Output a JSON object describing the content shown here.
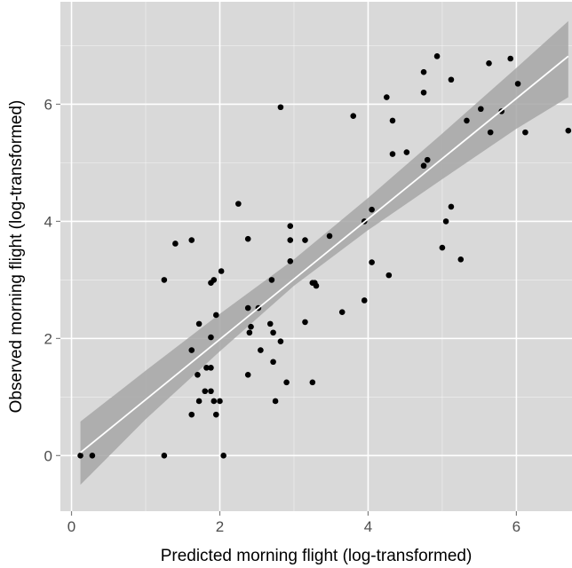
{
  "chart_data": {
    "type": "scatter",
    "title": "",
    "xlabel": "Predicted morning flight (log-transformed)",
    "ylabel": "Observed morning flight (log-transformed)",
    "xlim": [
      -0.15,
      6.75
    ],
    "ylim": [
      -0.95,
      7.75
    ],
    "xticks": [
      0,
      2,
      4,
      6
    ],
    "yticks": [
      0,
      2,
      4,
      6
    ],
    "xtick_labels": [
      "0",
      "2",
      "4",
      "6"
    ],
    "ytick_labels": [
      "0",
      "2",
      "4",
      "6"
    ],
    "grid": true,
    "legend": "none",
    "colors": {
      "panel": "#d9d9d9",
      "grid": "#ffffff",
      "points": "#000000",
      "fit_line": "#ffffff",
      "confidence_band": "#a6a6a6"
    },
    "points": [
      {
        "x": 0.12,
        "y": 0.0
      },
      {
        "x": 0.28,
        "y": 0.0
      },
      {
        "x": 1.25,
        "y": 0.0
      },
      {
        "x": 2.05,
        "y": 0.0
      },
      {
        "x": 1.25,
        "y": 3.0
      },
      {
        "x": 1.4,
        "y": 3.62
      },
      {
        "x": 1.62,
        "y": 3.68
      },
      {
        "x": 1.62,
        "y": 0.7
      },
      {
        "x": 1.62,
        "y": 1.8
      },
      {
        "x": 1.7,
        "y": 1.38
      },
      {
        "x": 1.72,
        "y": 2.25
      },
      {
        "x": 1.72,
        "y": 0.93
      },
      {
        "x": 1.8,
        "y": 1.1
      },
      {
        "x": 1.82,
        "y": 1.5
      },
      {
        "x": 1.88,
        "y": 1.1
      },
      {
        "x": 1.88,
        "y": 2.02
      },
      {
        "x": 1.88,
        "y": 1.5
      },
      {
        "x": 1.88,
        "y": 2.95
      },
      {
        "x": 1.92,
        "y": 3.0
      },
      {
        "x": 1.92,
        "y": 0.93
      },
      {
        "x": 1.95,
        "y": 0.7
      },
      {
        "x": 1.95,
        "y": 2.4
      },
      {
        "x": 2.0,
        "y": 0.93
      },
      {
        "x": 2.02,
        "y": 3.15
      },
      {
        "x": 2.25,
        "y": 4.3
      },
      {
        "x": 2.38,
        "y": 3.7
      },
      {
        "x": 2.38,
        "y": 2.52
      },
      {
        "x": 2.38,
        "y": 1.38
      },
      {
        "x": 2.4,
        "y": 2.1
      },
      {
        "x": 2.42,
        "y": 2.2
      },
      {
        "x": 2.52,
        "y": 2.52
      },
      {
        "x": 2.55,
        "y": 1.8
      },
      {
        "x": 2.68,
        "y": 2.25
      },
      {
        "x": 2.7,
        "y": 3.0
      },
      {
        "x": 2.72,
        "y": 2.1
      },
      {
        "x": 2.72,
        "y": 1.6
      },
      {
        "x": 2.75,
        "y": 0.93
      },
      {
        "x": 2.82,
        "y": 1.95
      },
      {
        "x": 2.82,
        "y": 5.95
      },
      {
        "x": 2.9,
        "y": 1.25
      },
      {
        "x": 2.95,
        "y": 3.92
      },
      {
        "x": 2.95,
        "y": 3.68
      },
      {
        "x": 2.95,
        "y": 3.32
      },
      {
        "x": 3.15,
        "y": 3.68
      },
      {
        "x": 3.15,
        "y": 2.28
      },
      {
        "x": 3.25,
        "y": 2.95
      },
      {
        "x": 3.25,
        "y": 1.25
      },
      {
        "x": 3.28,
        "y": 2.95
      },
      {
        "x": 3.3,
        "y": 2.9
      },
      {
        "x": 3.48,
        "y": 3.75
      },
      {
        "x": 3.65,
        "y": 2.45
      },
      {
        "x": 3.8,
        "y": 5.8
      },
      {
        "x": 3.95,
        "y": 2.65
      },
      {
        "x": 3.95,
        "y": 4.0
      },
      {
        "x": 4.05,
        "y": 4.2
      },
      {
        "x": 4.05,
        "y": 3.3
      },
      {
        "x": 4.25,
        "y": 6.12
      },
      {
        "x": 4.28,
        "y": 3.08
      },
      {
        "x": 4.33,
        "y": 5.72
      },
      {
        "x": 4.33,
        "y": 5.15
      },
      {
        "x": 4.52,
        "y": 5.18
      },
      {
        "x": 4.75,
        "y": 6.55
      },
      {
        "x": 4.75,
        "y": 6.2
      },
      {
        "x": 4.75,
        "y": 4.95
      },
      {
        "x": 4.8,
        "y": 5.05
      },
      {
        "x": 4.93,
        "y": 6.82
      },
      {
        "x": 5.0,
        "y": 3.55
      },
      {
        "x": 5.05,
        "y": 4.0
      },
      {
        "x": 5.12,
        "y": 6.42
      },
      {
        "x": 5.12,
        "y": 4.25
      },
      {
        "x": 5.25,
        "y": 3.35
      },
      {
        "x": 5.33,
        "y": 5.72
      },
      {
        "x": 5.52,
        "y": 5.92
      },
      {
        "x": 5.63,
        "y": 6.7
      },
      {
        "x": 5.65,
        "y": 5.52
      },
      {
        "x": 5.8,
        "y": 5.88
      },
      {
        "x": 5.92,
        "y": 6.78
      },
      {
        "x": 6.02,
        "y": 6.35
      },
      {
        "x": 6.12,
        "y": 5.52
      },
      {
        "x": 6.7,
        "y": 5.55
      }
    ],
    "fit_line": {
      "x": [
        0.12,
        6.7
      ],
      "y": [
        0.05,
        6.82
      ]
    },
    "confidence_band": {
      "x": [
        0.12,
        1.0,
        2.0,
        3.0,
        4.0,
        5.0,
        6.0,
        6.7
      ],
      "lower": [
        -0.5,
        0.62,
        1.78,
        2.9,
        3.85,
        4.72,
        5.58,
        6.12
      ],
      "upper": [
        0.58,
        1.45,
        2.42,
        3.35,
        4.4,
        5.5,
        6.62,
        7.42
      ]
    }
  }
}
